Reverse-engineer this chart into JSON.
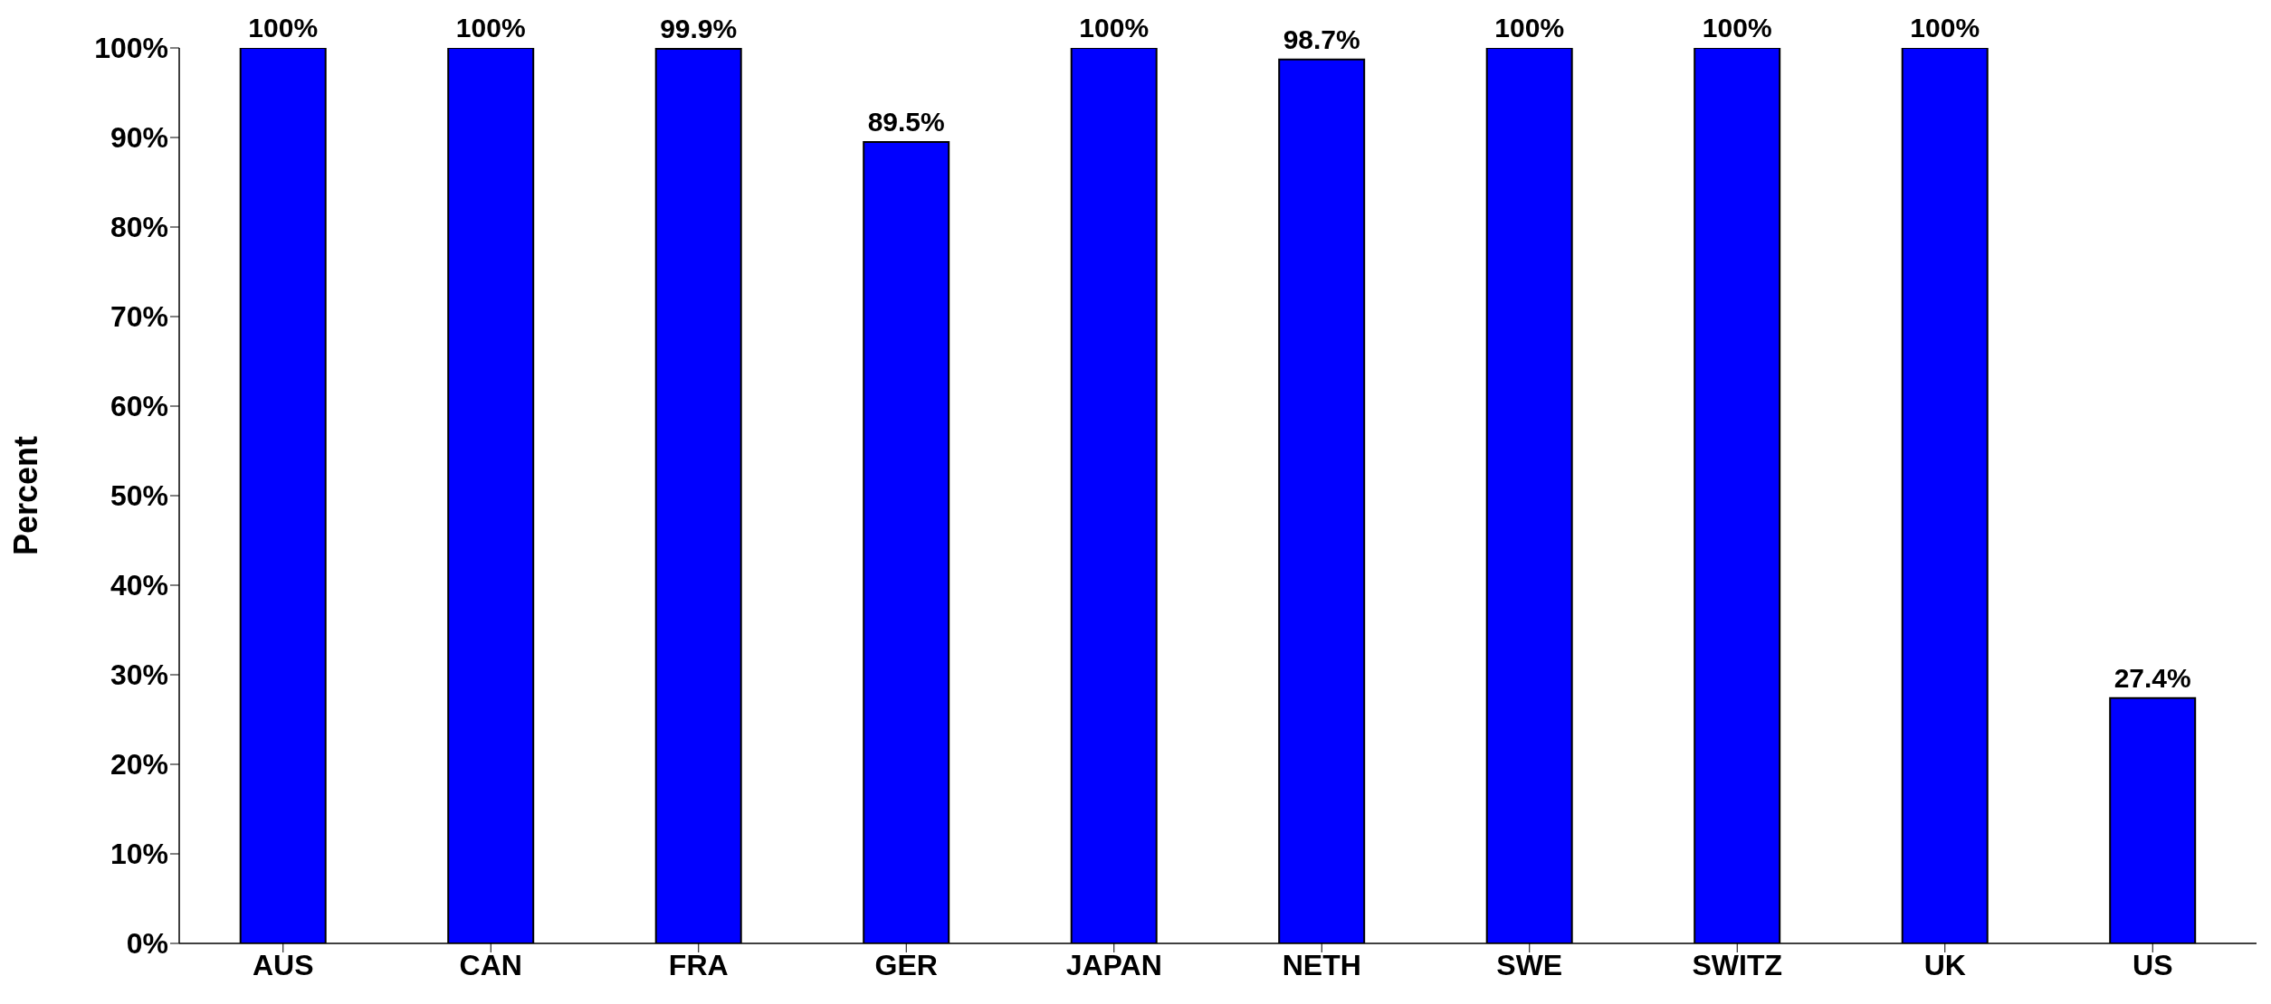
{
  "chart_data": {
    "type": "bar",
    "ylabel": "Percent",
    "categories": [
      "AUS",
      "CAN",
      "FRA",
      "GER",
      "JAPAN",
      "NETH",
      "SWE",
      "SWITZ",
      "UK",
      "US"
    ],
    "values": [
      100,
      100,
      99.9,
      89.5,
      100,
      98.7,
      100,
      100,
      100,
      27.4
    ],
    "value_labels": [
      "100%",
      "100%",
      "99.9%",
      "89.5%",
      "100%",
      "98.7%",
      "100%",
      "100%",
      "100%",
      "27.4%"
    ],
    "color": "#0000ff",
    "ylim": [
      0,
      100
    ],
    "yticks": [
      {
        "value": 0,
        "label": "0%"
      },
      {
        "value": 10,
        "label": "10%"
      },
      {
        "value": 20,
        "label": "20%"
      },
      {
        "value": 30,
        "label": "30%"
      },
      {
        "value": 40,
        "label": "40%"
      },
      {
        "value": 50,
        "label": "50%"
      },
      {
        "value": 60,
        "label": "60%"
      },
      {
        "value": 70,
        "label": "70%"
      },
      {
        "value": 80,
        "label": "80%"
      },
      {
        "value": 90,
        "label": "90%"
      },
      {
        "value": 100,
        "label": "100%"
      }
    ],
    "grid": false,
    "legend": false
  }
}
